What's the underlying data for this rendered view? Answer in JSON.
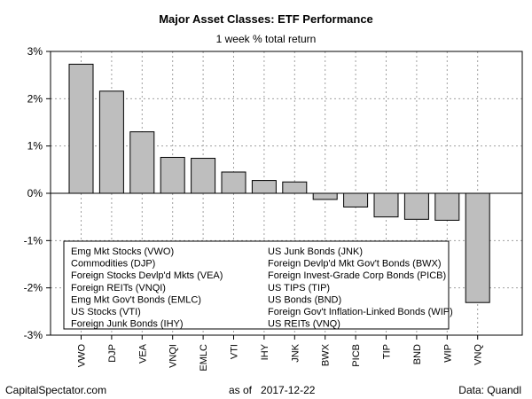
{
  "chart_data": {
    "type": "bar",
    "title": "Major Asset Classes: ETF Performance",
    "subtitle": "1 week % total return",
    "xlabel": "",
    "ylabel": "",
    "categories": [
      "VWO",
      "DJP",
      "VEA",
      "VNQI",
      "EMLC",
      "VTI",
      "IHY",
      "JNK",
      "BWX",
      "PICB",
      "TIP",
      "BND",
      "WIP",
      "VNQ"
    ],
    "values": [
      2.73,
      2.16,
      1.3,
      0.76,
      0.74,
      0.45,
      0.27,
      0.24,
      -0.13,
      -0.29,
      -0.5,
      -0.55,
      -0.57,
      -2.31
    ],
    "ylim": [
      -3,
      3
    ],
    "yticks": [
      3,
      2,
      1,
      0,
      -1,
      -2,
      -3
    ],
    "ytick_labels": [
      "3%",
      "2%",
      "1%",
      "0%",
      "-1%",
      "-2%",
      "-3%"
    ],
    "grid": true,
    "bar_color": "#bebebe",
    "legend_placement": "bottom-left",
    "legend": {
      "left_column": [
        "Emg Mkt Stocks (VWO)",
        "Commodities (DJP)",
        "Foreign Stocks Devlp'd Mkts (VEA)",
        "Foreign REITs (VNQI)",
        "Emg Mkt Gov't Bonds (EMLC)",
        "US Stocks (VTI)",
        "Foreign Junk Bonds (IHY)"
      ],
      "right_column": [
        "US Junk Bonds (JNK)",
        "Foreign Devlp'd Mkt Gov't Bonds (BWX)",
        "Foreign Invest-Grade Corp Bonds (PICB)",
        "US TIPS (TIP)",
        "US Bonds (BND)",
        "Foreign Gov't Inflation-Linked Bonds (WIP)",
        "US REITs (VNQ)"
      ]
    }
  },
  "footer": {
    "source": "CapitalSpectator.com",
    "date_prefix": "as of",
    "date": "2017-12-22",
    "data_source": "Data: Quandl"
  }
}
